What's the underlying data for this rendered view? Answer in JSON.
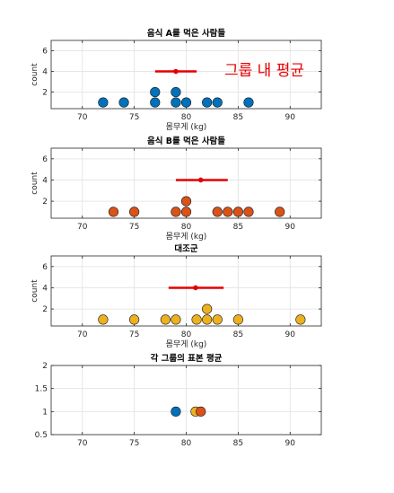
{
  "chart_data": [
    {
      "type": "scatter",
      "title": "음식 A를 먹은 사람들",
      "xlabel": "몸무게 (kg)",
      "ylabel": "count",
      "xlim": [
        67,
        93
      ],
      "ylim": [
        0.4,
        7
      ],
      "xticks": [
        70,
        75,
        80,
        85,
        90
      ],
      "yticks": [
        2,
        4,
        6
      ],
      "grid": true,
      "annotation": "그룹 내 평균",
      "annotation_color": "#e60000",
      "marker_color": "#0072bd",
      "mean": 79,
      "interval": [
        77,
        81
      ],
      "points": [
        {
          "x": 72,
          "y": 1
        },
        {
          "x": 74,
          "y": 1
        },
        {
          "x": 77,
          "y": 1
        },
        {
          "x": 77,
          "y": 2
        },
        {
          "x": 79,
          "y": 1
        },
        {
          "x": 79,
          "y": 2
        },
        {
          "x": 80,
          "y": 1
        },
        {
          "x": 82,
          "y": 1
        },
        {
          "x": 83,
          "y": 1
        },
        {
          "x": 86,
          "y": 1
        }
      ]
    },
    {
      "type": "scatter",
      "title": "음식 B를 먹은 사람들",
      "xlabel": "몸무게 (kg)",
      "ylabel": "count",
      "xlim": [
        67,
        93
      ],
      "ylim": [
        0.4,
        7
      ],
      "xticks": [
        70,
        75,
        80,
        85,
        90
      ],
      "yticks": [
        2,
        4,
        6
      ],
      "grid": true,
      "marker_color": "#d95319",
      "mean": 81.4,
      "interval": [
        79,
        84
      ],
      "points": [
        {
          "x": 73,
          "y": 1
        },
        {
          "x": 75,
          "y": 1
        },
        {
          "x": 79,
          "y": 1
        },
        {
          "x": 80,
          "y": 1
        },
        {
          "x": 80,
          "y": 2
        },
        {
          "x": 83,
          "y": 1
        },
        {
          "x": 84,
          "y": 1
        },
        {
          "x": 85,
          "y": 1
        },
        {
          "x": 86,
          "y": 1
        },
        {
          "x": 89,
          "y": 1
        }
      ]
    },
    {
      "type": "scatter",
      "title": "대조군",
      "xlabel": "몸무게 (kg)",
      "ylabel": "count",
      "xlim": [
        67,
        93
      ],
      "ylim": [
        0.4,
        7
      ],
      "xticks": [
        70,
        75,
        80,
        85,
        90
      ],
      "yticks": [
        2,
        4,
        6
      ],
      "grid": true,
      "marker_color": "#edb120",
      "mean": 80.9,
      "interval": [
        78.3,
        83.6
      ],
      "points": [
        {
          "x": 72,
          "y": 1
        },
        {
          "x": 75,
          "y": 1
        },
        {
          "x": 78,
          "y": 1
        },
        {
          "x": 79,
          "y": 1
        },
        {
          "x": 81,
          "y": 1
        },
        {
          "x": 82,
          "y": 1
        },
        {
          "x": 82,
          "y": 2
        },
        {
          "x": 83,
          "y": 1
        },
        {
          "x": 85,
          "y": 1
        },
        {
          "x": 91,
          "y": 1
        }
      ]
    },
    {
      "type": "scatter",
      "title": "각 그룹의 표본 평균",
      "xlabel": "",
      "ylabel": "",
      "xlim": [
        67,
        93
      ],
      "ylim": [
        0.5,
        2
      ],
      "xticks": [
        70,
        75,
        80,
        85,
        90
      ],
      "yticks": [
        0.5,
        1,
        1.5,
        2
      ],
      "grid": true,
      "points": [
        {
          "x": 79,
          "y": 1,
          "color": "#0072bd"
        },
        {
          "x": 80.9,
          "y": 1,
          "color": "#edb120"
        },
        {
          "x": 81.4,
          "y": 1,
          "color": "#d95319"
        }
      ]
    }
  ]
}
